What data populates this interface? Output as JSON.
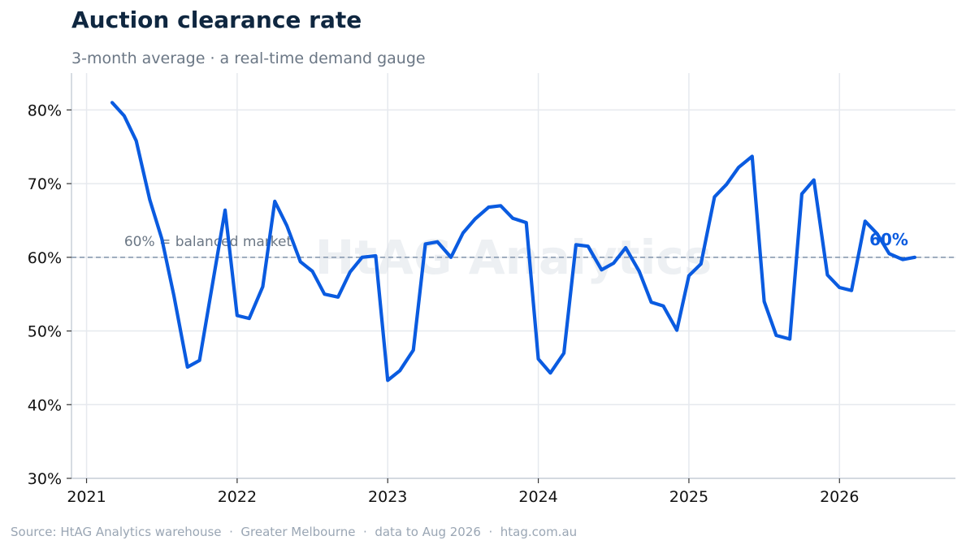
{
  "header": {
    "title": "Auction clearance rate",
    "subtitle": "3-month average · a real-time demand gauge"
  },
  "footer": {
    "source": "Source: HtAG Analytics warehouse  ·  Greater Melbourne  ·  data to Aug 2026  ·  htag.com.au"
  },
  "watermark": "HtAG Analytics",
  "colors": {
    "line": "#0a5be0",
    "reference": "#8a9bb0",
    "grid": "#e6e9ee",
    "axis": "#c9d0d9"
  },
  "chart_data": {
    "type": "line",
    "xlim": [
      2020.9,
      2026.77
    ],
    "ylim": [
      30,
      85
    ],
    "y_ticks": [
      30,
      40,
      50,
      60,
      70,
      80
    ],
    "y_tick_labels": [
      "30%",
      "40%",
      "50%",
      "60%",
      "70%",
      "80%"
    ],
    "x_ticks": [
      2021,
      2022,
      2023,
      2024,
      2025,
      2026
    ],
    "x_tick_labels": [
      "2021",
      "2022",
      "2023",
      "2024",
      "2025",
      "2026"
    ],
    "grid": true,
    "reference_line": {
      "value": 60,
      "label": "60% = balanced market"
    },
    "end_label": "60%",
    "series": [
      {
        "x": [
          2021.17,
          2021.25,
          2021.33,
          2021.42,
          2021.5,
          2021.58,
          2021.67,
          2021.75,
          2021.83,
          2021.92,
          2022.0,
          2022.08,
          2022.17,
          2022.25,
          2022.33,
          2022.42,
          2022.5,
          2022.58,
          2022.67,
          2022.75,
          2022.83,
          2022.92,
          2023.0,
          2023.08,
          2023.17,
          2023.25,
          2023.33,
          2023.42,
          2023.5,
          2023.58,
          2023.67,
          2023.75,
          2023.83,
          2023.92,
          2024.0,
          2024.08,
          2024.17,
          2024.25,
          2024.33,
          2024.42,
          2024.5,
          2024.58,
          2024.67,
          2024.75,
          2024.83,
          2024.92,
          2025.0,
          2025.08,
          2025.17,
          2025.25,
          2025.33,
          2025.42,
          2025.5,
          2025.58,
          2025.67,
          2025.75,
          2025.83,
          2025.92,
          2026.0,
          2026.08,
          2026.17,
          2026.25,
          2026.33,
          2026.42,
          2026.5
        ],
        "values": [
          81.0,
          79.2,
          75.8,
          67.8,
          62.5,
          54.8,
          45.1,
          46.0,
          55.6,
          66.4,
          52.1,
          51.7,
          56.0,
          67.6,
          64.3,
          59.4,
          58.1,
          55.0,
          54.6,
          58.0,
          60.0,
          60.2,
          43.3,
          44.6,
          47.4,
          61.8,
          62.1,
          60.0,
          63.3,
          65.2,
          66.8,
          67.0,
          65.3,
          64.7,
          46.2,
          44.3,
          47.0,
          61.7,
          61.5,
          58.3,
          59.2,
          61.3,
          58.1,
          53.9,
          53.4,
          50.1,
          57.5,
          59.1,
          68.2,
          69.9,
          72.2,
          73.7,
          54.0,
          49.4,
          48.9,
          68.6,
          70.5,
          57.6,
          55.9,
          55.5,
          64.9,
          63.2,
          60.5,
          59.7,
          60.0
        ]
      }
    ]
  }
}
